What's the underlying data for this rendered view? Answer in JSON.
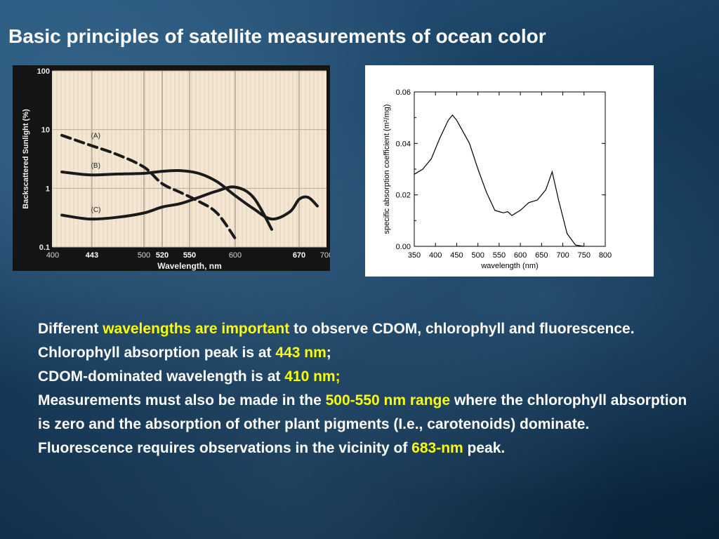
{
  "title": "Basic principles of satellite measurements of ocean color",
  "colors": {
    "highlight": "#ffff00",
    "text": "#ffffff"
  },
  "chart_data": [
    {
      "type": "line",
      "ylabel": "Backscattered Sunlight (%)",
      "xlabel": "Wavelength, nm",
      "y_scale": "log",
      "ylim": [
        0.1,
        100
      ],
      "xlim": [
        400,
        700
      ],
      "y_ticks": [
        "100",
        "10",
        "1",
        "0.1"
      ],
      "x_ticks": [
        "400",
        "443",
        "500",
        "520",
        "550",
        "600",
        "670",
        "700"
      ],
      "x_ticks_bold": [
        "443",
        "520",
        "550",
        "670"
      ],
      "grid": true,
      "series": [
        {
          "name": "(A)",
          "style": "dashed",
          "x": [
            410,
            440,
            470,
            500,
            520,
            540,
            560,
            580,
            600
          ],
          "y": [
            8,
            5.5,
            3.8,
            2.3,
            1.2,
            0.85,
            0.6,
            0.38,
            0.14
          ]
        },
        {
          "name": "(B)",
          "style": "solid",
          "x": [
            410,
            440,
            470,
            500,
            520,
            540,
            560,
            580,
            600,
            620,
            640,
            660,
            670,
            680,
            690
          ],
          "y": [
            1.9,
            1.7,
            1.75,
            1.8,
            1.95,
            2.0,
            1.8,
            1.3,
            0.75,
            0.45,
            0.3,
            0.4,
            0.65,
            0.7,
            0.5
          ]
        },
        {
          "name": "(C)",
          "style": "solid",
          "x": [
            410,
            440,
            470,
            500,
            520,
            540,
            560,
            580,
            600,
            620,
            640
          ],
          "y": [
            0.35,
            0.3,
            0.32,
            0.38,
            0.48,
            0.55,
            0.7,
            0.9,
            1.05,
            0.7,
            0.2
          ]
        }
      ]
    },
    {
      "type": "line",
      "ylabel": "specific absorption coefficient (m²/mg)",
      "xlabel": "wavelength (nm)",
      "ylim": [
        0,
        0.06
      ],
      "xlim": [
        350,
        800
      ],
      "y_ticks": [
        "0.00",
        "0.02",
        "0.04",
        "0.06"
      ],
      "x_ticks": [
        "350",
        "400",
        "450",
        "500",
        "550",
        "600",
        "650",
        "700",
        "750",
        "800"
      ],
      "series": [
        {
          "x": [
            350,
            370,
            390,
            410,
            430,
            440,
            450,
            460,
            480,
            500,
            520,
            540,
            550,
            560,
            570,
            580,
            600,
            620,
            640,
            660,
            675,
            690,
            710,
            730,
            750
          ],
          "y": [
            0.028,
            0.03,
            0.034,
            0.042,
            0.049,
            0.051,
            0.049,
            0.046,
            0.04,
            0.03,
            0.021,
            0.014,
            0.0135,
            0.013,
            0.0135,
            0.012,
            0.014,
            0.017,
            0.018,
            0.022,
            0.029,
            0.018,
            0.005,
            0.0005,
            0.0
          ]
        }
      ]
    }
  ],
  "bullets": [
    [
      {
        "text": "Different "
      },
      {
        "text": "wavelengths are important",
        "hl": true
      },
      {
        "text": " to observe CDOM, chlorophyll and fluorescence."
      }
    ],
    [
      {
        "text": "Chlorophyll absorption peak is at "
      },
      {
        "text": "443 nm",
        "hl": true
      },
      {
        "text": ";"
      }
    ],
    [
      {
        "text": "CDOM-dominated wavelength is at "
      },
      {
        "text": "410 nm;",
        "hl": true
      }
    ],
    [
      {
        "text": "Measurements must also be made in the "
      },
      {
        "text": "500-550 nm range",
        "hl": true
      },
      {
        "text": " where the chlorophyll absorption is zero and the absorption of other plant pigments (I.e., carotenoids) dominate."
      }
    ],
    [
      {
        "text": "Fluorescence requires observations in the vicinity of "
      },
      {
        "text": "683-nm",
        "hl": true
      },
      {
        "text": " peak."
      }
    ]
  ]
}
